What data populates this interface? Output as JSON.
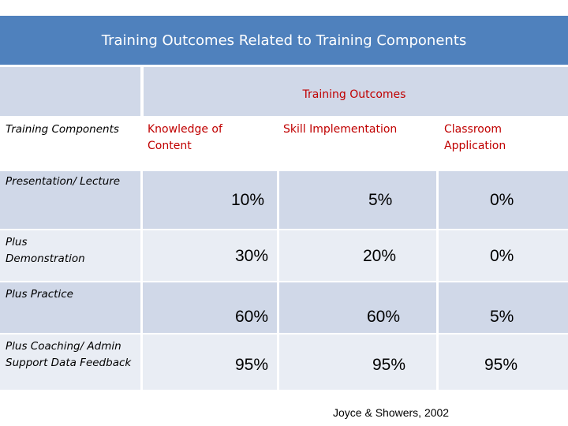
{
  "title": "Training Outcomes Related to Training Components",
  "table": {
    "group_header": "Training Outcomes",
    "components_header": "Training Components",
    "columns": [
      "Knowledge of Content",
      "Skill Implementation",
      "Classroom Application"
    ],
    "rows": [
      {
        "component": "Presentation/ Lecture",
        "values": [
          "10%",
          "5%",
          "0%"
        ]
      },
      {
        "component": "Plus Demonstration",
        "values": [
          "30%",
          "20%",
          "0%"
        ]
      },
      {
        "component": "Plus Practice",
        "values": [
          "60%",
          "60%",
          "5%"
        ]
      },
      {
        "component": "Plus Coaching/ Admin Support Data Feedback",
        "values": [
          "95%",
          "95%",
          "95%"
        ]
      }
    ]
  },
  "source": "Joyce & Showers, 2002",
  "colors": {
    "title_bar": "#4f81bd",
    "band": "#d0d8e8",
    "light_band": "#e9edf4",
    "header_text": "#c00000"
  }
}
